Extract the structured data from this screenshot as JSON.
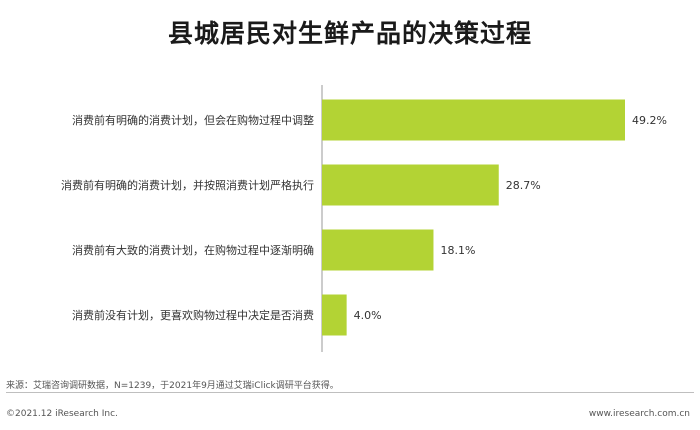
{
  "header": {
    "title": "县城居民对生鲜产品的决策过程"
  },
  "chart_data": {
    "type": "bar",
    "orientation": "horizontal",
    "categories": [
      "消费前有明确的消费计划，但会在购物过程中调整",
      "消费前有明确的消费计划，并按照消费计划严格执行",
      "消费前有大致的消费计划，在购物过程中逐渐明确",
      "消费前没有计划，更喜欢购物过程中决定是否消费"
    ],
    "values": [
      49.2,
      28.7,
      18.1,
      4.0
    ],
    "value_labels": [
      "49.2%",
      "28.7%",
      "18.1%",
      "4.0%"
    ],
    "unit": "%",
    "xlim": [
      0,
      50
    ],
    "bar_color": "#b3d334",
    "axis_color": "#999999",
    "grid": false,
    "legend": "none"
  },
  "footer": {
    "source": "来源：艾瑞咨询调研数据，N=1239，于2021年9月通过艾瑞iClick调研平台获得。",
    "copyright": "©2021.12 iResearch Inc.",
    "site": "www.iresearch.com.cn"
  }
}
